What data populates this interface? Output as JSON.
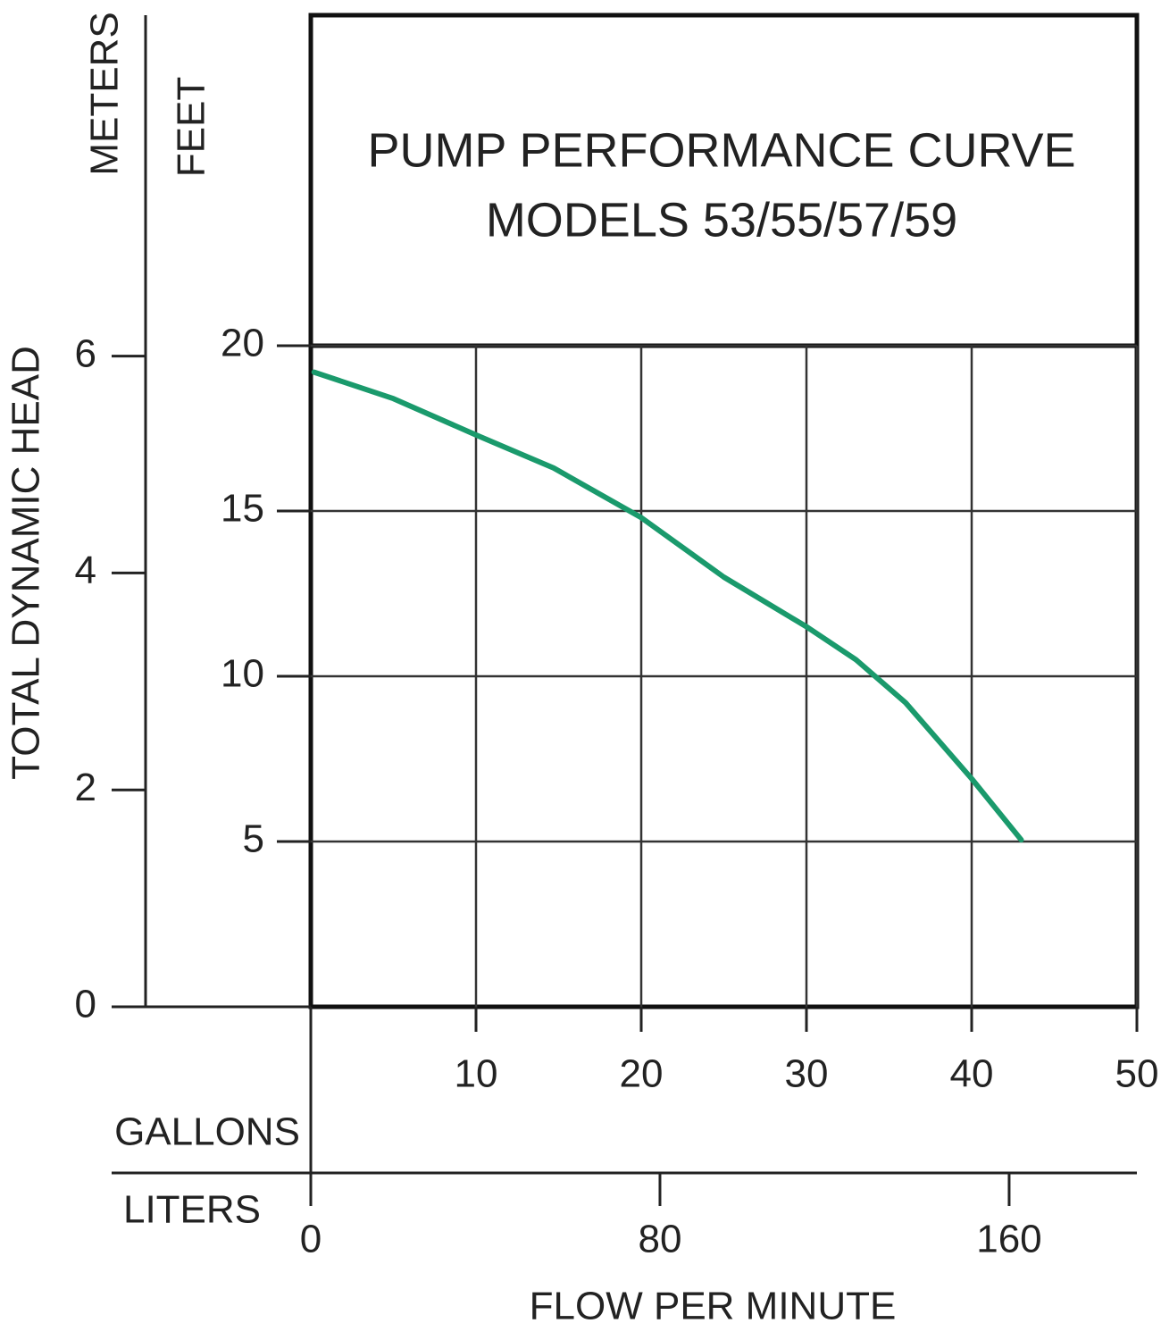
{
  "chart_data": {
    "type": "line",
    "title": "PUMP PERFORMANCE CURVE",
    "subtitle": "MODELS 53/55/57/59",
    "ylabel": "TOTAL DYNAMIC HEAD",
    "y_units": "FEET",
    "y2_units": "METERS",
    "x_units": "GALLONS",
    "x2_units": "LITERS",
    "xlabel": "FLOW PER MINUTE",
    "x": [
      0.2,
      5,
      10,
      14.7,
      20,
      25,
      30,
      33,
      36,
      40,
      43
    ],
    "series": [
      {
        "color": "#1a9a6c",
        "values": [
          19.2,
          18.4,
          17.3,
          16.3,
          14.8,
          13.0,
          11.5,
          10.5,
          9.2,
          6.9,
          5.05
        ]
      }
    ],
    "xlim": [
      0,
      50
    ],
    "xticks": [
      10,
      20,
      30,
      40,
      50
    ],
    "x2lim": [
      0,
      189.27
    ],
    "x2ticks": [
      0,
      80,
      160
    ],
    "ylim": [
      0,
      20
    ],
    "yticks": [
      5,
      10,
      15,
      20
    ],
    "y2lim": [
      0,
      6.096
    ],
    "y2ticks": [
      0,
      2,
      4,
      6
    ],
    "grid": true
  }
}
